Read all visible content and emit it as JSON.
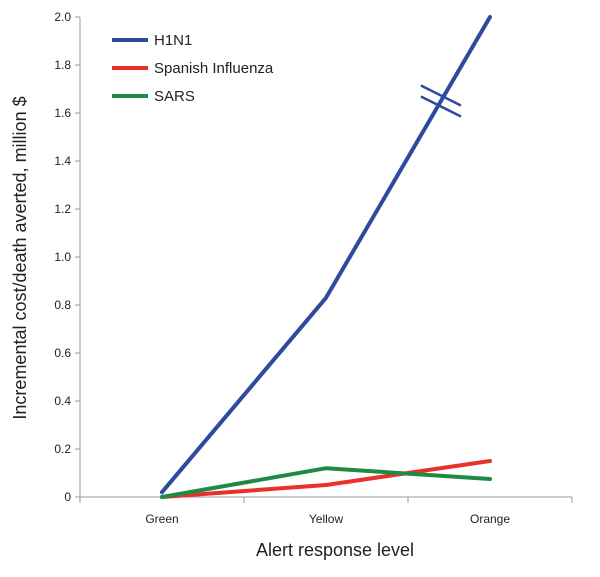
{
  "chart_data": {
    "type": "line",
    "title": "",
    "xlabel": "Alert response level",
    "ylabel": "Incremental cost/death averted, million $",
    "categories": [
      "Green",
      "Yellow",
      "Orange"
    ],
    "ylim": [
      0,
      2.0
    ],
    "yticks": [
      "0",
      "0.2",
      "0.4",
      "0.6",
      "0.8",
      "1.0",
      "1.2",
      "1.4",
      "1.6",
      "1.8",
      "2.0"
    ],
    "grid": false,
    "legend_position": "top-left",
    "axis_break": {
      "series": "H1N1",
      "at": 1.65
    },
    "series": [
      {
        "name": "H1N1",
        "color": "#2E4A9E",
        "values": [
          0.02,
          0.83,
          2.0
        ]
      },
      {
        "name": "Spanish Influenza",
        "color": "#E8312B",
        "values": [
          0.0,
          0.05,
          0.15
        ]
      },
      {
        "name": "SARS",
        "color": "#1F8A45",
        "values": [
          0.0,
          0.12,
          0.075
        ]
      }
    ]
  }
}
